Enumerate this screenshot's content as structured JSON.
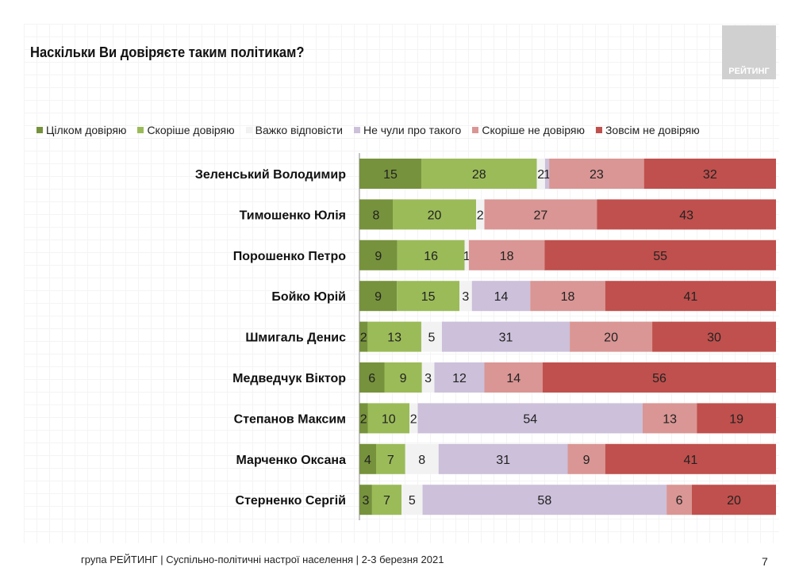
{
  "title": "Наскільки Ви довіряєте таким політикам?",
  "logo": "РЕЙТИНГ",
  "footer": "група РЕЙТИНГ | Суспільно-політичні настрої населення  | 2-3 березня 2021",
  "page_number": "7",
  "chart_data": {
    "type": "bar",
    "orientation": "horizontal",
    "stacked": "100%",
    "title": "Наскільки Ви довіряєте таким політикам?",
    "legend_position": "top",
    "categories": [
      "Зеленський Володимир",
      "Тимошенко Юлія",
      "Порошенко Петро",
      "Бойко Юрій",
      "Шмигаль Денис",
      "Медведчук Віктор",
      "Степанов Максим",
      "Марченко Оксана",
      "Стерненко Сергій"
    ],
    "series": [
      {
        "name": "Цілком довіряю",
        "color": "#76923c",
        "values": [
          15,
          8,
          9,
          9,
          2,
          6,
          2,
          4,
          3
        ]
      },
      {
        "name": "Скоріше довіряю",
        "color": "#9bbb59",
        "values": [
          28,
          20,
          16,
          15,
          13,
          9,
          10,
          7,
          7
        ]
      },
      {
        "name": "Важко відповісти",
        "color": "#f2f2f2",
        "values": [
          2,
          2,
          1,
          3,
          5,
          3,
          2,
          8,
          5
        ]
      },
      {
        "name": "Не чули про такого",
        "color": "#ccc0da",
        "values": [
          1,
          0,
          0,
          14,
          31,
          12,
          54,
          31,
          58
        ]
      },
      {
        "name": "Скоріше не довіряю",
        "color": "#d99694",
        "values": [
          23,
          27,
          18,
          18,
          20,
          14,
          13,
          9,
          6
        ]
      },
      {
        "name": "Зовсім не довіряю",
        "color": "#c0504d",
        "values": [
          32,
          43,
          55,
          41,
          30,
          56,
          19,
          41,
          20
        ]
      }
    ]
  }
}
